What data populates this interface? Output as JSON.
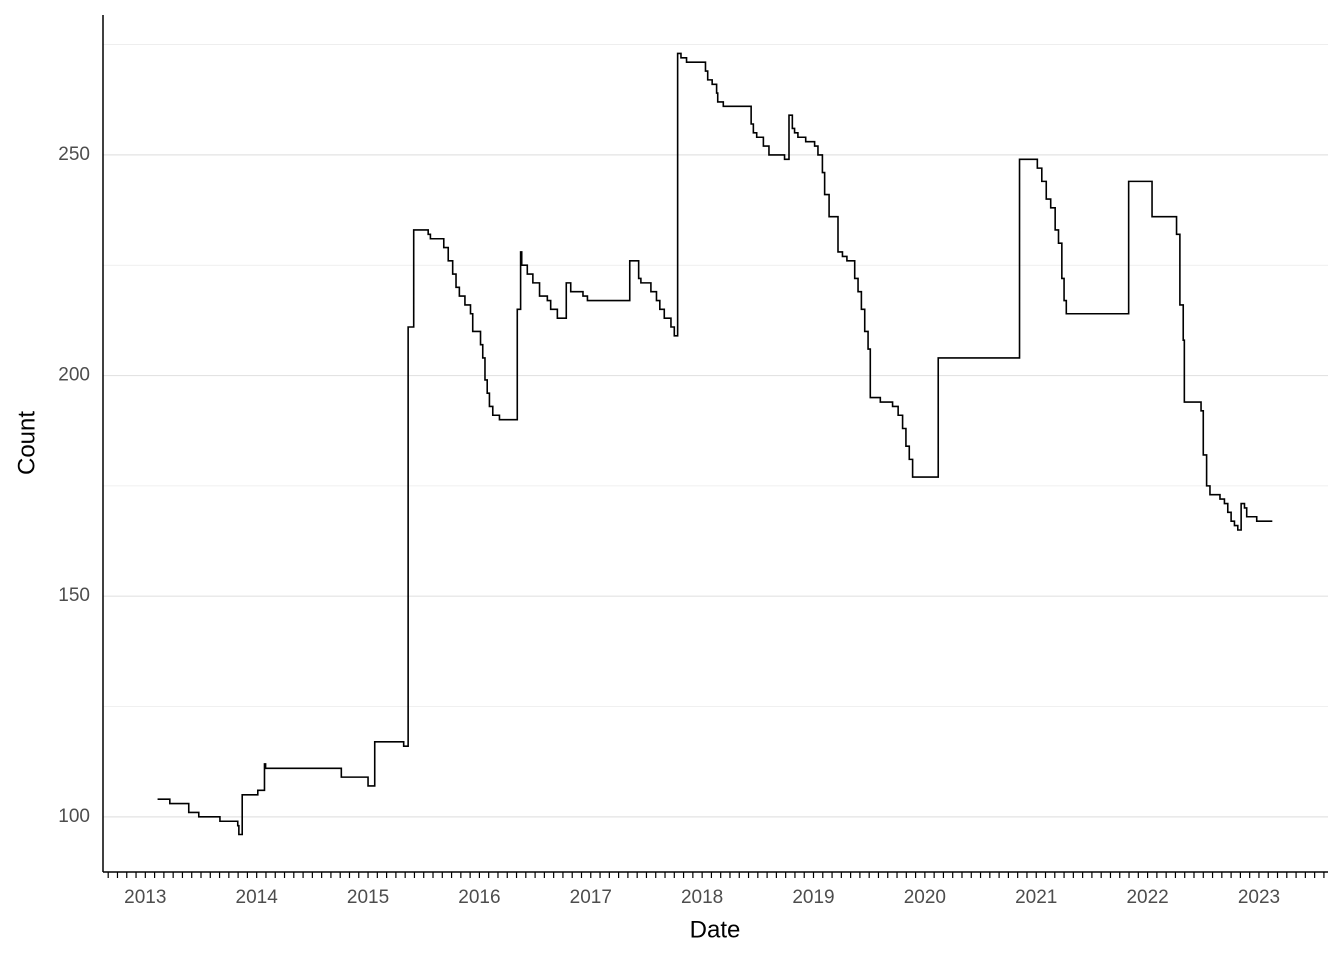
{
  "chart_data": {
    "type": "line",
    "step": true,
    "x_label": "Date",
    "y_label": "Count",
    "x": [
      2013.11,
      2013.22,
      2013.39,
      2013.48,
      2013.67,
      2013.83,
      2013.84,
      2013.87,
      2014.01,
      2014.07,
      2014.08,
      2014.76,
      2015.0,
      2015.06,
      2015.32,
      2015.36,
      2015.41,
      2015.54,
      2015.56,
      2015.68,
      2015.72,
      2015.76,
      2015.79,
      2015.82,
      2015.87,
      2015.92,
      2015.94,
      2016.01,
      2016.03,
      2016.05,
      2016.07,
      2016.09,
      2016.12,
      2016.18,
      2016.34,
      2016.37,
      2016.38,
      2016.43,
      2016.48,
      2016.54,
      2016.61,
      2016.64,
      2016.7,
      2016.78,
      2016.82,
      2016.93,
      2016.97,
      2017.35,
      2017.43,
      2017.45,
      2017.54,
      2017.59,
      2017.62,
      2017.66,
      2017.72,
      2017.75,
      2017.78,
      2017.81,
      2017.86,
      2018.03,
      2018.05,
      2018.09,
      2018.13,
      2018.14,
      2018.19,
      2018.44,
      2018.46,
      2018.49,
      2018.55,
      2018.6,
      2018.74,
      2018.78,
      2018.81,
      2018.83,
      2018.86,
      2018.93,
      2019.01,
      2019.04,
      2019.08,
      2019.1,
      2019.14,
      2019.22,
      2019.26,
      2019.3,
      2019.37,
      2019.4,
      2019.43,
      2019.46,
      2019.49,
      2019.51,
      2019.6,
      2019.71,
      2019.76,
      2019.8,
      2019.83,
      2019.86,
      2019.89,
      2020.12,
      2020.85,
      2021.01,
      2021.05,
      2021.09,
      2021.13,
      2021.17,
      2021.2,
      2021.23,
      2021.25,
      2021.27,
      2021.83,
      2022.04,
      2022.26,
      2022.29,
      2022.32,
      2022.33,
      2022.48,
      2022.5,
      2022.53,
      2022.56,
      2022.65,
      2022.69,
      2022.72,
      2022.75,
      2022.78,
      2022.81,
      2022.84,
      2022.87,
      2022.89,
      2022.98,
      2023.12
    ],
    "series": [
      {
        "color": "#000000",
        "values": [
          104,
          103,
          101,
          100,
          99,
          98,
          96,
          105,
          106,
          112,
          111,
          109,
          107,
          117,
          116,
          211,
          233,
          232,
          231,
          229,
          226,
          223,
          220,
          218,
          216,
          214,
          210,
          207,
          204,
          199,
          196,
          193,
          191,
          190,
          215,
          228,
          225,
          223,
          221,
          218,
          217,
          215,
          213,
          221,
          219,
          218,
          217,
          226,
          222,
          221,
          219,
          217,
          215,
          213,
          211,
          209,
          273,
          272,
          271,
          269,
          267,
          266,
          264,
          262,
          261,
          257,
          255,
          254,
          252,
          250,
          249,
          259,
          256,
          255,
          254,
          253,
          252,
          250,
          246,
          241,
          236,
          228,
          227,
          226,
          222,
          219,
          215,
          210,
          206,
          195,
          194,
          193,
          191,
          188,
          184,
          181,
          177,
          204,
          249,
          247,
          244,
          240,
          238,
          233,
          230,
          222,
          217,
          214,
          244,
          236,
          232,
          216,
          208,
          194,
          192,
          182,
          175,
          173,
          172,
          171,
          169,
          167,
          166,
          165,
          171,
          170,
          168,
          167,
          167
        ]
      }
    ],
    "xlim": [
      2012.62,
      2023.62
    ],
    "xticks": [
      2013,
      2014,
      2015,
      2016,
      2017,
      2018,
      2019,
      2020,
      2021,
      2022,
      2023
    ],
    "ylim": [
      87.5,
      281.7
    ],
    "yticks": [
      100,
      150,
      200,
      250
    ],
    "minor_yticks": [
      125,
      175,
      225,
      275
    ],
    "grid": true
  }
}
